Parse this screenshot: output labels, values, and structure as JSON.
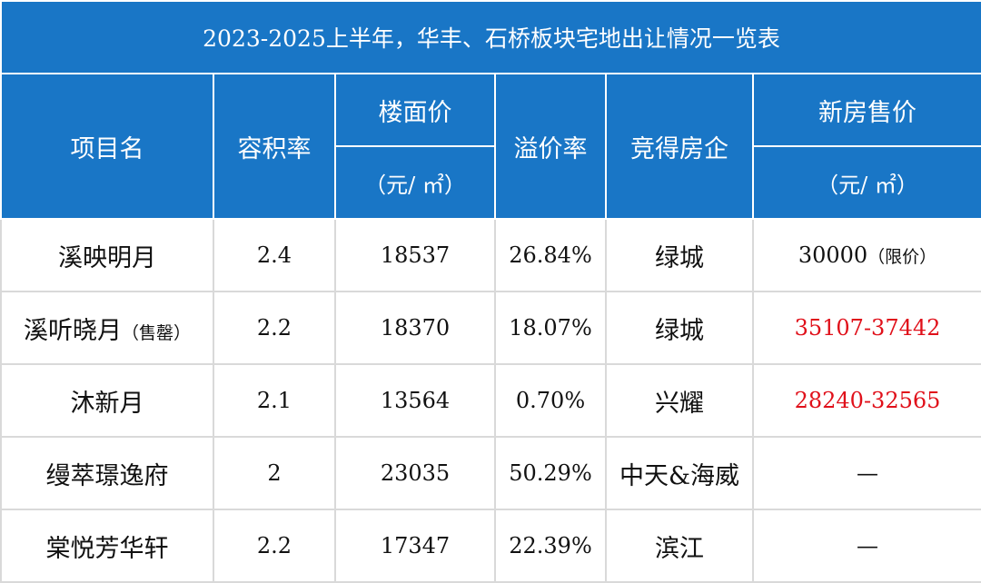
{
  "title": "2023-2025上半年，华丰、石桥板块宅地出让情况一览表",
  "headers": {
    "project": "项目名",
    "far": "容积率",
    "floor_price": "楼面价",
    "floor_price_unit": "（元/ ㎡）",
    "premium": "溢价率",
    "developer": "竞得房企",
    "new_price": "新房售价",
    "new_price_unit": "（元/ ㎡）"
  },
  "rows": [
    {
      "name": "溪映明月",
      "name_note": "",
      "far": "2.4",
      "floor_price": "18537",
      "premium": "26.84%",
      "developer": "绿城",
      "price": "30000",
      "price_note": "（限价）",
      "price_color": "#111111"
    },
    {
      "name": "溪听晓月",
      "name_note": "（售罄）",
      "far": "2.2",
      "floor_price": "18370",
      "premium": "18.07%",
      "developer": "绿城",
      "price": "35107-37442",
      "price_note": "",
      "price_color": "#e0101a"
    },
    {
      "name": "沐新月",
      "name_note": "",
      "far": "2.1",
      "floor_price": "13564",
      "premium": "0.70%",
      "developer": "兴耀",
      "price": "28240-32565",
      "price_note": "",
      "price_color": "#e0101a"
    },
    {
      "name": "缦萃璟逸府",
      "name_note": "",
      "far": "2",
      "floor_price": "23035",
      "premium": "50.29%",
      "developer": "中天&海威",
      "price": "—",
      "price_note": "",
      "price_color": "#111111"
    },
    {
      "name": "棠悦芳华轩",
      "name_note": "",
      "far": "2.2",
      "floor_price": "17347",
      "premium": "22.39%",
      "developer": "滨江",
      "price": "—",
      "price_note": "",
      "price_color": "#111111"
    }
  ],
  "colors": {
    "header_bg": "#1976c6",
    "header_text": "#ffffff",
    "highlight": "#e0101a",
    "grid": "#d9d9d9"
  }
}
